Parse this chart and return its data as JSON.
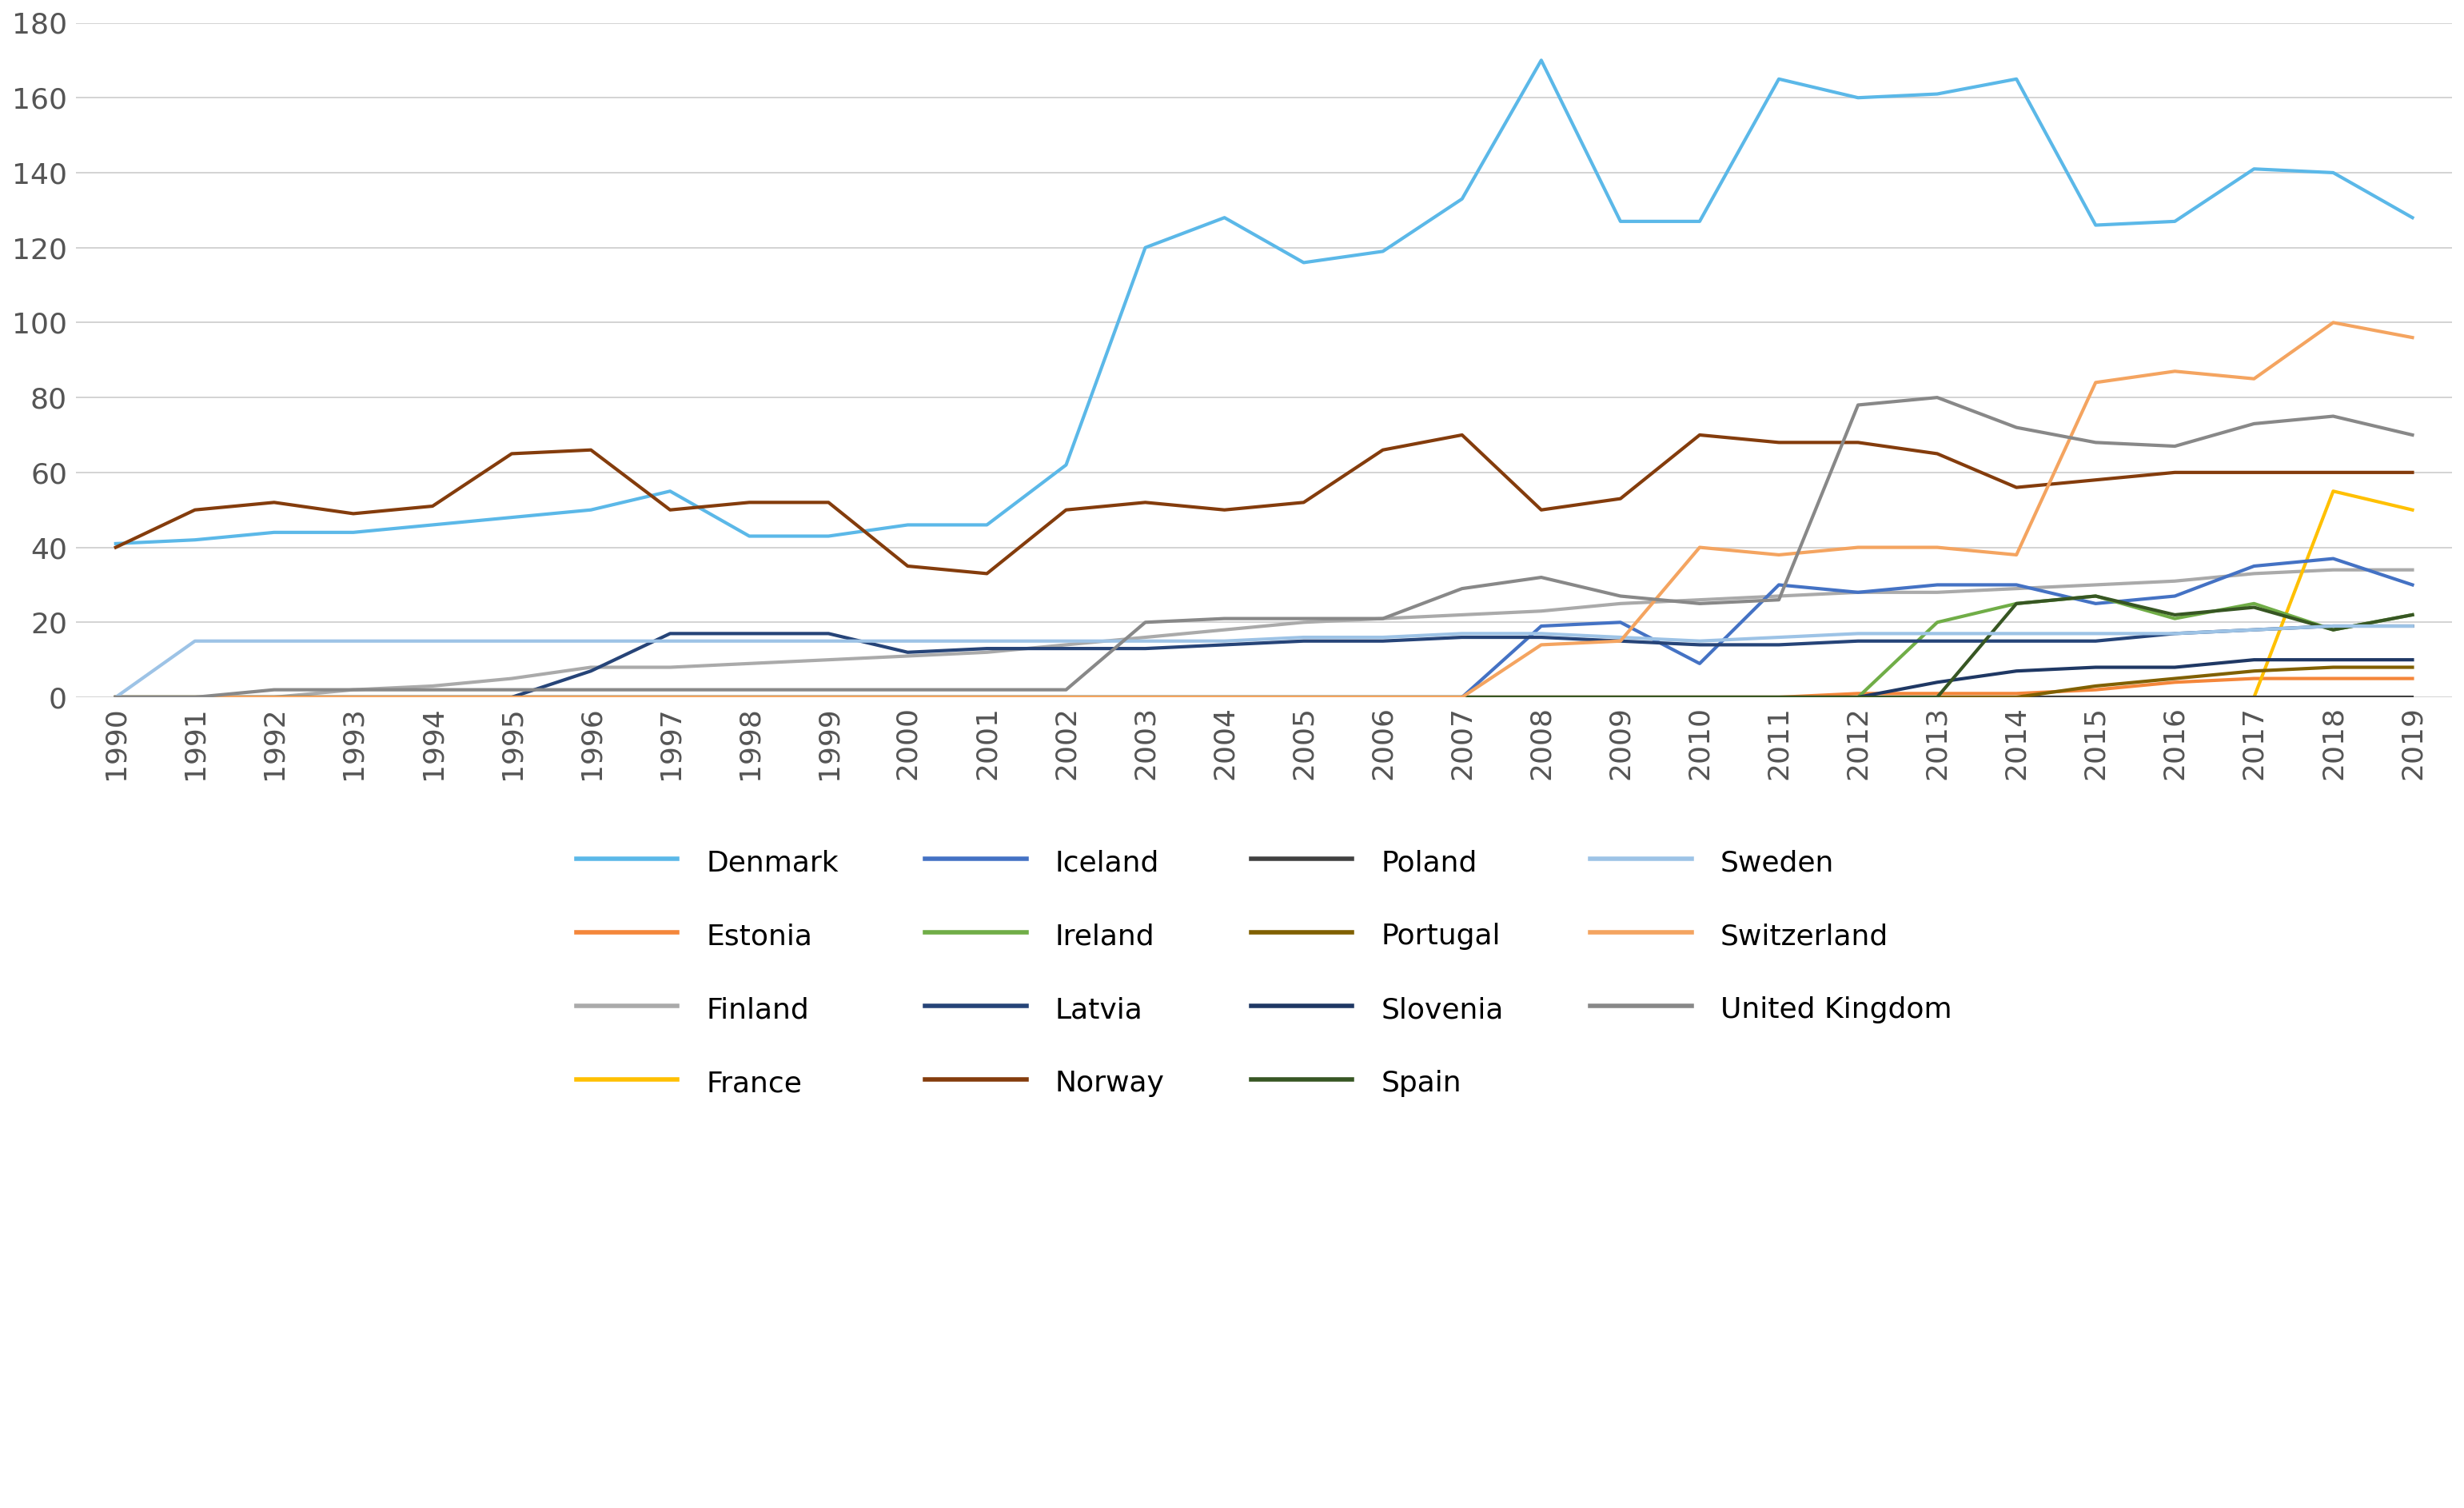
{
  "years": [
    1990,
    1991,
    1992,
    1993,
    1994,
    1995,
    1996,
    1997,
    1998,
    1999,
    2000,
    2001,
    2002,
    2003,
    2004,
    2005,
    2006,
    2007,
    2008,
    2009,
    2010,
    2011,
    2012,
    2013,
    2014,
    2015,
    2016,
    2017,
    2018,
    2019
  ],
  "series": {
    "Denmark": {
      "color": "#5BB8E8",
      "linewidth": 3.0,
      "values": [
        41,
        42,
        44,
        44,
        46,
        48,
        50,
        55,
        43,
        43,
        46,
        46,
        62,
        120,
        128,
        116,
        119,
        133,
        170,
        127,
        127,
        165,
        160,
        161,
        165,
        126,
        127,
        141,
        140,
        128
      ]
    },
    "Estonia": {
      "color": "#F4863A",
      "linewidth": 3.0,
      "values": [
        0,
        0,
        0,
        0,
        0,
        0,
        0,
        0,
        0,
        0,
        0,
        0,
        0,
        0,
        0,
        0,
        0,
        0,
        0,
        0,
        0,
        0,
        1,
        1,
        1,
        2,
        4,
        5,
        5,
        5
      ]
    },
    "Finland": {
      "color": "#AAAAAA",
      "linewidth": 3.0,
      "values": [
        0,
        0,
        0,
        2,
        3,
        5,
        8,
        8,
        9,
        10,
        11,
        12,
        14,
        16,
        18,
        20,
        21,
        22,
        23,
        25,
        26,
        27,
        28,
        28,
        29,
        30,
        31,
        33,
        34,
        34
      ]
    },
    "France": {
      "color": "#FFC000",
      "linewidth": 3.0,
      "values": [
        0,
        0,
        0,
        0,
        0,
        0,
        0,
        0,
        0,
        0,
        0,
        0,
        0,
        0,
        0,
        0,
        0,
        0,
        0,
        0,
        0,
        0,
        0,
        0,
        0,
        0,
        0,
        0,
        55,
        50
      ]
    },
    "Iceland": {
      "color": "#4472C4",
      "linewidth": 3.0,
      "values": [
        0,
        0,
        0,
        0,
        0,
        0,
        0,
        0,
        0,
        0,
        0,
        0,
        0,
        0,
        0,
        0,
        0,
        0,
        19,
        20,
        9,
        30,
        28,
        30,
        30,
        25,
        27,
        35,
        37,
        30
      ]
    },
    "Ireland": {
      "color": "#70AD47",
      "linewidth": 3.0,
      "values": [
        0,
        0,
        0,
        0,
        0,
        0,
        0,
        0,
        0,
        0,
        0,
        0,
        0,
        0,
        0,
        0,
        0,
        0,
        0,
        0,
        0,
        0,
        0,
        20,
        25,
        27,
        21,
        25,
        18,
        22
      ]
    },
    "Latvia": {
      "color": "#264478",
      "linewidth": 3.0,
      "values": [
        0,
        0,
        0,
        0,
        0,
        0,
        7,
        17,
        17,
        17,
        12,
        13,
        13,
        13,
        14,
        15,
        15,
        16,
        16,
        15,
        14,
        14,
        15,
        15,
        15,
        15,
        17,
        18,
        19,
        19
      ]
    },
    "Norway": {
      "color": "#843C0C",
      "linewidth": 3.0,
      "values": [
        40,
        50,
        52,
        49,
        51,
        65,
        66,
        50,
        52,
        52,
        35,
        33,
        50,
        52,
        50,
        52,
        66,
        70,
        50,
        53,
        70,
        68,
        68,
        65,
        56,
        58,
        60,
        60,
        60,
        60
      ]
    },
    "Poland": {
      "color": "#404040",
      "linewidth": 3.0,
      "values": [
        0,
        0,
        0,
        0,
        0,
        0,
        0,
        0,
        0,
        0,
        0,
        0,
        0,
        0,
        0,
        0,
        0,
        0,
        0,
        0,
        0,
        0,
        0,
        0,
        0,
        0,
        0,
        0,
        0,
        0
      ]
    },
    "Portugal": {
      "color": "#806000",
      "linewidth": 3.0,
      "values": [
        0,
        0,
        0,
        0,
        0,
        0,
        0,
        0,
        0,
        0,
        0,
        0,
        0,
        0,
        0,
        0,
        0,
        0,
        0,
        0,
        0,
        0,
        0,
        0,
        0,
        3,
        5,
        7,
        8,
        8
      ]
    },
    "Slovenia": {
      "color": "#1F3864",
      "linewidth": 3.0,
      "values": [
        0,
        0,
        0,
        0,
        0,
        0,
        0,
        0,
        0,
        0,
        0,
        0,
        0,
        0,
        0,
        0,
        0,
        0,
        0,
        0,
        0,
        0,
        0,
        4,
        7,
        8,
        8,
        10,
        10,
        10
      ]
    },
    "Spain": {
      "color": "#375623",
      "linewidth": 3.0,
      "values": [
        0,
        0,
        0,
        0,
        0,
        0,
        0,
        0,
        0,
        0,
        0,
        0,
        0,
        0,
        0,
        0,
        0,
        0,
        0,
        0,
        0,
        0,
        0,
        0,
        25,
        27,
        22,
        24,
        18,
        22
      ]
    },
    "Sweden": {
      "color": "#9DC3E6",
      "linewidth": 3.0,
      "values": [
        0,
        15,
        15,
        15,
        15,
        15,
        15,
        15,
        15,
        15,
        15,
        15,
        15,
        15,
        15,
        16,
        16,
        17,
        17,
        16,
        15,
        16,
        17,
        17,
        17,
        17,
        17,
        18,
        19,
        19
      ]
    },
    "Switzerland": {
      "color": "#F4A460",
      "linewidth": 3.0,
      "values": [
        0,
        0,
        0,
        0,
        0,
        0,
        0,
        0,
        0,
        0,
        0,
        0,
        0,
        0,
        0,
        0,
        0,
        0,
        14,
        15,
        40,
        38,
        40,
        40,
        38,
        84,
        87,
        85,
        100,
        96
      ]
    },
    "United Kingdom": {
      "color": "#888888",
      "linewidth": 3.0,
      "values": [
        0,
        0,
        2,
        2,
        2,
        2,
        2,
        2,
        2,
        2,
        2,
        2,
        2,
        20,
        21,
        21,
        21,
        29,
        32,
        27,
        25,
        26,
        78,
        80,
        72,
        68,
        67,
        73,
        75,
        70
      ]
    }
  },
  "ylim": [
    0,
    180
  ],
  "yticks": [
    0,
    20,
    40,
    60,
    80,
    100,
    120,
    140,
    160,
    180
  ],
  "background_color": "#FFFFFF",
  "grid_color": "#CCCCCC",
  "legend_order": [
    "Denmark",
    "Estonia",
    "Finland",
    "France",
    "Iceland",
    "Ireland",
    "Latvia",
    "Norway",
    "Poland",
    "Portugal",
    "Slovenia",
    "Spain",
    "Sweden",
    "Switzerland",
    "United Kingdom"
  ]
}
